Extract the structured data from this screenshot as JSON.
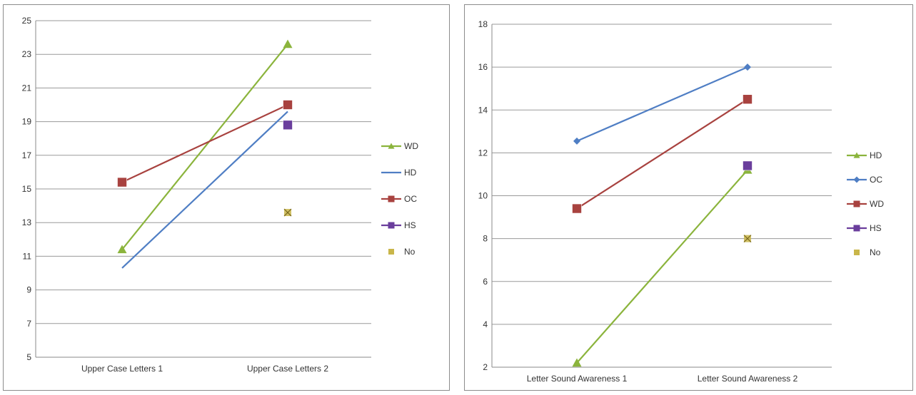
{
  "chart_data": [
    {
      "type": "line",
      "categories": [
        "Upper Case Letters 1",
        "Upper Case Letters 2"
      ],
      "ylim": [
        5,
        25
      ],
      "yticks": [
        5,
        7,
        9,
        11,
        13,
        15,
        17,
        19,
        21,
        23,
        25
      ],
      "grid": true,
      "legend_position": "right",
      "series": [
        {
          "name": "WD",
          "values": [
            11.4,
            23.6
          ],
          "color": "#8bb43c",
          "marker": "triangle"
        },
        {
          "name": "HD",
          "values": [
            10.3,
            19.6
          ],
          "color": "#4f7ec4",
          "marker": "none"
        },
        {
          "name": "OC",
          "values": [
            15.4,
            20.0
          ],
          "color": "#a8423f",
          "marker": "square"
        },
        {
          "name": "HS",
          "values": [
            null,
            18.8
          ],
          "color": "#6a3e9c",
          "marker": "square"
        },
        {
          "name": "No",
          "values": [
            null,
            13.6
          ],
          "color": "#c9b64a",
          "marker": "x-square"
        }
      ]
    },
    {
      "type": "line",
      "categories": [
        "Letter Sound Awareness 1",
        "Letter Sound Awareness 2"
      ],
      "ylim": [
        2,
        18
      ],
      "yticks": [
        2,
        4,
        6,
        8,
        10,
        12,
        14,
        16,
        18
      ],
      "grid": true,
      "legend_position": "right",
      "series": [
        {
          "name": "HD",
          "values": [
            2.2,
            11.2
          ],
          "color": "#8bb43c",
          "marker": "triangle"
        },
        {
          "name": "OC",
          "values": [
            12.55,
            16.0
          ],
          "color": "#4f7ec4",
          "marker": "diamond"
        },
        {
          "name": "WD",
          "values": [
            9.4,
            14.5
          ],
          "color": "#a8423f",
          "marker": "square"
        },
        {
          "name": "HS",
          "values": [
            null,
            11.4
          ],
          "color": "#6a3e9c",
          "marker": "square"
        },
        {
          "name": "No",
          "values": [
            null,
            8.0
          ],
          "color": "#c9b64a",
          "marker": "x-square"
        }
      ]
    }
  ]
}
